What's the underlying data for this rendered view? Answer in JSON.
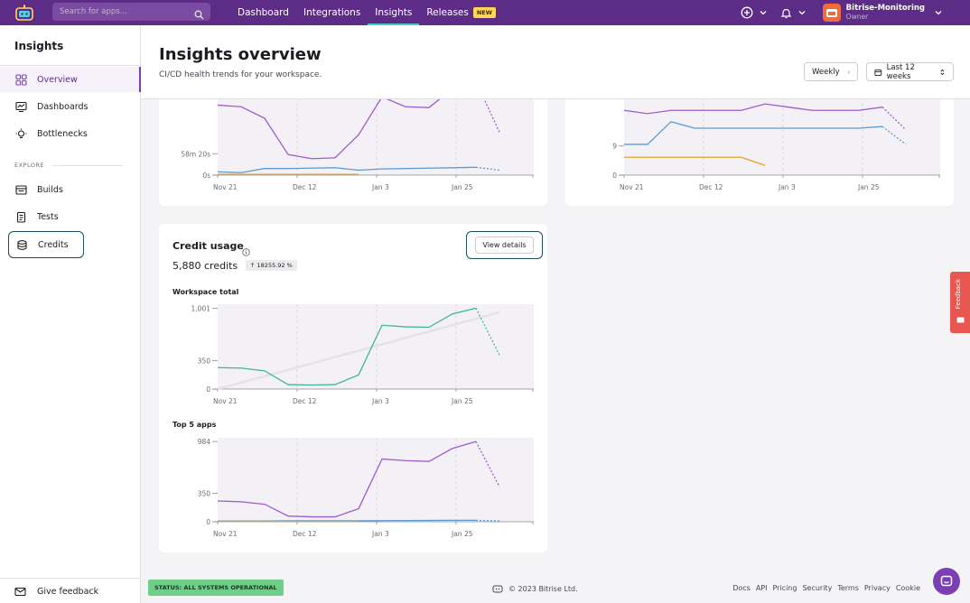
{
  "topbar": {
    "search_placeholder": "Search for apps...",
    "nav": [
      "Dashboard",
      "Integrations",
      "Insights",
      "Releases"
    ],
    "new_badge": "NEW",
    "workspace_name": "Bitrise-Monitoring",
    "workspace_role": "Owner"
  },
  "sidebar": {
    "title": "Insights",
    "items": [
      "Overview",
      "Dashboards",
      "Bottlenecks"
    ],
    "section": "EXPLORE",
    "explore_items": [
      "Builds",
      "Tests",
      "Credits"
    ],
    "give_feedback": "Give feedback"
  },
  "header": {
    "title": "Insights overview",
    "subtitle": "CI/CD health trends for your workspace.",
    "interval": "Weekly",
    "range": "Last 12 weeks"
  },
  "credit_card": {
    "title": "Credit usage",
    "amount": "5,880 credits",
    "change": "18255.92 %",
    "view_details": "View details",
    "workspace_total": "Workspace total",
    "top_apps": "Top 5 apps"
  },
  "footer": {
    "status": "STATUS: ALL SYSTEMS OPERATIONAL",
    "copyright": "© 2023 Bitrise Ltd.",
    "links": [
      "Docs",
      "API",
      "Pricing",
      "Security",
      "Terms",
      "Privacy",
      "Cookie"
    ],
    "feedback_tab": "Feedback"
  },
  "colors": {
    "purple": "#9d5bd2",
    "blue": "#5b9bd5",
    "orange": "#d9a42e",
    "green": "#3fb98a"
  },
  "chart_data": [
    {
      "type": "line",
      "x_ticks": [
        "Nov 21",
        "Dec 12",
        "Jan 3",
        "Jan 25"
      ],
      "y_ticks": [
        "0s",
        "58m 20s"
      ],
      "series": [
        {
          "values": [
            85,
            83,
            69,
            25,
            20,
            21,
            49,
            95,
            83,
            82,
            105,
            114,
            52
          ]
        },
        {
          "values": [
            4,
            3,
            8,
            8,
            8.5,
            9,
            6,
            7.5,
            8,
            8.5,
            9,
            9.5,
            6
          ]
        },
        {
          "values": [
            1,
            1,
            1,
            1,
            1,
            1,
            1
          ]
        }
      ]
    },
    {
      "type": "line",
      "x_ticks": [
        "Nov 21",
        "Dec 12",
        "Jan 3",
        "Jan 25"
      ],
      "y_ticks": [
        "0",
        "9"
      ],
      "series": [
        {
          "values": [
            20,
            19,
            20,
            20,
            20,
            20,
            22,
            21,
            20,
            20,
            20,
            21,
            14
          ]
        },
        {
          "values": [
            9.5,
            9.5,
            16.5,
            14.5,
            14.5,
            14.5,
            14.5,
            14.5,
            14.5,
            14.5,
            14.5,
            15,
            9.5
          ]
        },
        {
          "values": [
            5.5,
            5.5,
            5.5,
            5.5,
            5.5,
            5.5,
            3
          ]
        }
      ]
    },
    {
      "type": "line",
      "title": "Workspace total",
      "x_ticks": [
        "Nov 21",
        "Dec 12",
        "Jan 3",
        "Jan 25"
      ],
      "y_ticks": [
        "0",
        "350",
        "1,001"
      ],
      "series": [
        {
          "values": [
            265,
            260,
            225,
            55,
            50,
            55,
            175,
            790,
            770,
            765,
            930,
            1001,
            420
          ]
        }
      ]
    },
    {
      "type": "line",
      "title": "Top 5 apps",
      "x_ticks": [
        "Nov 21",
        "Dec 12",
        "Jan 3",
        "Jan 25"
      ],
      "y_ticks": [
        "0",
        "350",
        "984"
      ],
      "series": [
        {
          "values": [
            255,
            245,
            215,
            70,
            60,
            60,
            160,
            770,
            750,
            740,
            900,
            984,
            430
          ]
        },
        {
          "values": [
            10,
            10,
            10,
            12,
            12,
            12,
            12,
            14,
            15,
            16,
            18,
            18,
            10
          ]
        },
        {
          "values": [
            5,
            5,
            5,
            5,
            5,
            5,
            5
          ]
        }
      ]
    }
  ]
}
